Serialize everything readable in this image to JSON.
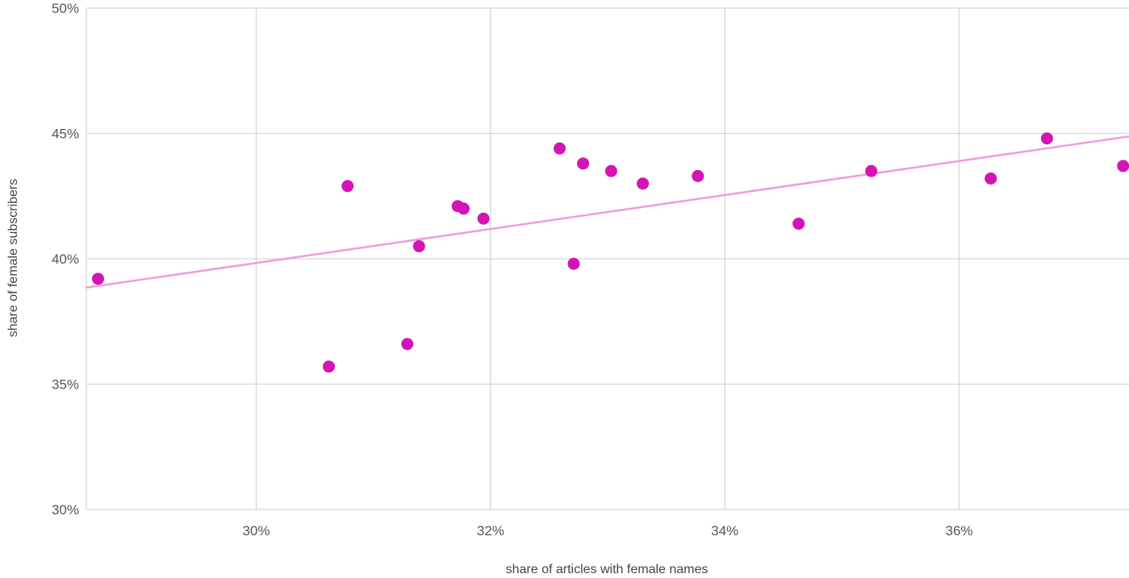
{
  "chart_data": {
    "type": "scatter",
    "title": "",
    "xlabel": "share of articles with female names",
    "ylabel": "share of female subscribers",
    "xlim": [
      28.55,
      37.45
    ],
    "ylim": [
      30,
      50
    ],
    "x_ticks": [
      30,
      32,
      34,
      36
    ],
    "x_tick_labels": [
      "30%",
      "32%",
      "34%",
      "36%"
    ],
    "y_ticks": [
      30,
      35,
      40,
      45,
      50
    ],
    "y_tick_labels": [
      "30%",
      "35%",
      "40%",
      "45%",
      "50%"
    ],
    "grid": true,
    "series": [
      {
        "points": [
          {
            "x": 28.65,
            "y": 39.2
          },
          {
            "x": 30.62,
            "y": 35.7
          },
          {
            "x": 30.78,
            "y": 42.9
          },
          {
            "x": 31.29,
            "y": 36.6
          },
          {
            "x": 31.39,
            "y": 40.5
          },
          {
            "x": 31.72,
            "y": 42.1
          },
          {
            "x": 31.77,
            "y": 42.0
          },
          {
            "x": 31.94,
            "y": 41.6
          },
          {
            "x": 32.59,
            "y": 44.4
          },
          {
            "x": 32.71,
            "y": 39.8
          },
          {
            "x": 32.79,
            "y": 43.8
          },
          {
            "x": 33.03,
            "y": 43.5
          },
          {
            "x": 33.3,
            "y": 43.0
          },
          {
            "x": 33.77,
            "y": 43.3
          },
          {
            "x": 34.63,
            "y": 41.4
          },
          {
            "x": 35.25,
            "y": 43.5
          },
          {
            "x": 36.27,
            "y": 43.2
          },
          {
            "x": 36.75,
            "y": 44.8
          },
          {
            "x": 37.4,
            "y": 43.7
          }
        ]
      }
    ],
    "trendline": {
      "x": [
        28.55,
        37.45
      ],
      "y": [
        38.85,
        44.88
      ]
    },
    "colors": {
      "point": "#d414b4",
      "trendline": "#ee9ce0",
      "grid": "#d6d6d6",
      "tick_text": "#555555"
    }
  }
}
